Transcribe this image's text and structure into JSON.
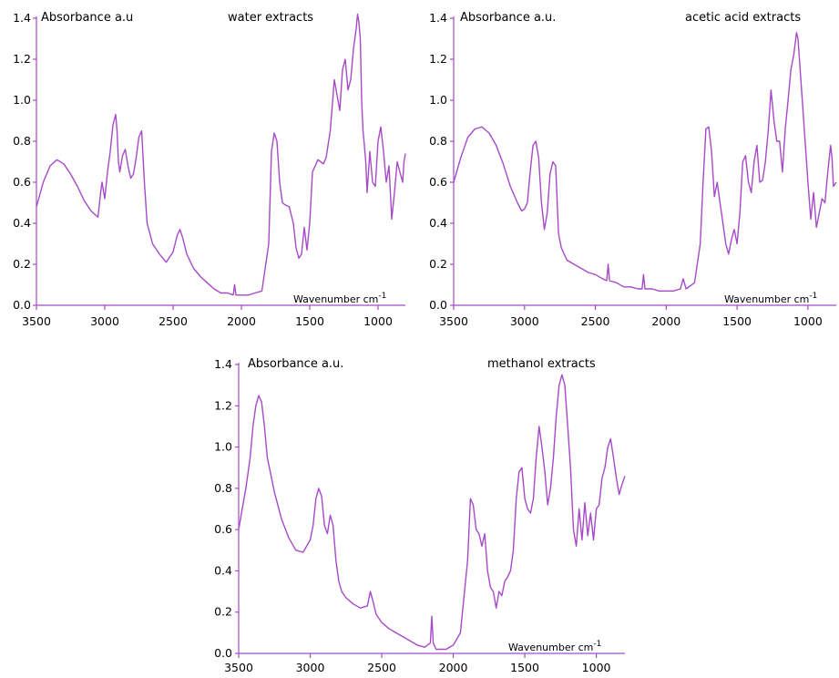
{
  "chart_data": [
    {
      "type": "line",
      "title": "water extracts",
      "ylabel": "Absorbance a.u",
      "xlabel": "Wavenumber cm",
      "xlabel_superscript": "-1",
      "xlim": [
        3500,
        800
      ],
      "ylim": [
        0.0,
        1.4
      ],
      "xticks": [
        "3500",
        "3000",
        "2500",
        "2000",
        "1500",
        "1000"
      ],
      "yticks": [
        "0.0",
        "0.2",
        "0.4",
        "0.6",
        "0.8",
        "1.0",
        "1.2",
        "1.4"
      ],
      "series": [
        {
          "color": "#a64ac9",
          "x": [
            3500,
            3450,
            3400,
            3350,
            3300,
            3250,
            3200,
            3150,
            3100,
            3050,
            3030,
            3020,
            3000,
            2980,
            2960,
            2940,
            2920,
            2910,
            2900,
            2890,
            2870,
            2850,
            2830,
            2810,
            2790,
            2770,
            2750,
            2730,
            2710,
            2690,
            2650,
            2600,
            2550,
            2500,
            2470,
            2450,
            2430,
            2400,
            2350,
            2300,
            2250,
            2200,
            2150,
            2100,
            2060,
            2050,
            2040,
            2000,
            1950,
            1900,
            1850,
            1800,
            1780,
            1760,
            1740,
            1720,
            1700,
            1680,
            1650,
            1620,
            1600,
            1580,
            1560,
            1540,
            1520,
            1500,
            1480,
            1460,
            1440,
            1420,
            1400,
            1380,
            1350,
            1320,
            1280,
            1260,
            1240,
            1220,
            1200,
            1180,
            1160,
            1150,
            1140,
            1130,
            1120,
            1110,
            1100,
            1090,
            1080,
            1060,
            1040,
            1020,
            1000,
            980,
            960,
            940,
            920,
            900,
            880,
            860,
            840,
            820,
            810,
            800
          ],
          "y": [
            0.48,
            0.6,
            0.68,
            0.71,
            0.69,
            0.64,
            0.58,
            0.51,
            0.46,
            0.43,
            0.55,
            0.6,
            0.52,
            0.65,
            0.75,
            0.88,
            0.93,
            0.85,
            0.7,
            0.65,
            0.73,
            0.76,
            0.68,
            0.62,
            0.64,
            0.72,
            0.82,
            0.85,
            0.6,
            0.4,
            0.3,
            0.25,
            0.21,
            0.26,
            0.34,
            0.37,
            0.33,
            0.25,
            0.18,
            0.14,
            0.11,
            0.08,
            0.06,
            0.06,
            0.05,
            0.1,
            0.05,
            0.05,
            0.05,
            0.06,
            0.07,
            0.3,
            0.75,
            0.84,
            0.8,
            0.6,
            0.5,
            0.49,
            0.48,
            0.4,
            0.28,
            0.23,
            0.25,
            0.38,
            0.27,
            0.4,
            0.65,
            0.68,
            0.71,
            0.7,
            0.69,
            0.72,
            0.85,
            1.1,
            0.95,
            1.15,
            1.2,
            1.05,
            1.1,
            1.25,
            1.35,
            1.42,
            1.38,
            1.3,
            1.0,
            0.85,
            0.78,
            0.7,
            0.55,
            0.75,
            0.6,
            0.58,
            0.8,
            0.87,
            0.75,
            0.6,
            0.68,
            0.42,
            0.55,
            0.7,
            0.65,
            0.6,
            0.7,
            0.74
          ]
        }
      ]
    },
    {
      "type": "line",
      "title": "acetic acid extracts",
      "ylabel": "Absorbance a.u.",
      "xlabel": "Wavenumber cm",
      "xlabel_superscript": "-1",
      "xlim": [
        3500,
        800
      ],
      "ylim": [
        0.0,
        1.4
      ],
      "xticks": [
        "3500",
        "3000",
        "2500",
        "2000",
        "1500",
        "1000"
      ],
      "yticks": [
        "0.0",
        "0.2",
        "0.4",
        "0.6",
        "0.8",
        "1.0",
        "1.2",
        "1.4"
      ],
      "series": [
        {
          "color": "#a64ac9",
          "x": [
            3500,
            3450,
            3400,
            3350,
            3300,
            3250,
            3200,
            3150,
            3100,
            3050,
            3020,
            3000,
            2980,
            2960,
            2940,
            2920,
            2900,
            2880,
            2860,
            2840,
            2820,
            2800,
            2780,
            2760,
            2740,
            2720,
            2700,
            2650,
            2600,
            2550,
            2500,
            2450,
            2420,
            2410,
            2400,
            2350,
            2300,
            2250,
            2200,
            2170,
            2160,
            2150,
            2100,
            2050,
            2000,
            1950,
            1900,
            1880,
            1860,
            1800,
            1760,
            1740,
            1720,
            1700,
            1680,
            1660,
            1640,
            1620,
            1600,
            1580,
            1560,
            1540,
            1520,
            1500,
            1480,
            1460,
            1440,
            1420,
            1400,
            1380,
            1360,
            1340,
            1320,
            1300,
            1280,
            1260,
            1240,
            1220,
            1200,
            1180,
            1160,
            1140,
            1120,
            1100,
            1080,
            1070,
            1060,
            1050,
            1040,
            1020,
            1000,
            980,
            960,
            940,
            920,
            900,
            880,
            860,
            840,
            830,
            820,
            800
          ],
          "y": [
            0.6,
            0.72,
            0.82,
            0.86,
            0.87,
            0.84,
            0.78,
            0.69,
            0.58,
            0.5,
            0.46,
            0.47,
            0.5,
            0.65,
            0.78,
            0.8,
            0.72,
            0.5,
            0.37,
            0.45,
            0.64,
            0.7,
            0.68,
            0.35,
            0.28,
            0.25,
            0.22,
            0.2,
            0.18,
            0.16,
            0.15,
            0.13,
            0.12,
            0.2,
            0.12,
            0.11,
            0.09,
            0.09,
            0.08,
            0.08,
            0.15,
            0.08,
            0.08,
            0.07,
            0.07,
            0.07,
            0.08,
            0.13,
            0.08,
            0.11,
            0.3,
            0.6,
            0.86,
            0.87,
            0.75,
            0.53,
            0.6,
            0.5,
            0.4,
            0.3,
            0.25,
            0.32,
            0.37,
            0.3,
            0.45,
            0.7,
            0.73,
            0.6,
            0.55,
            0.7,
            0.78,
            0.6,
            0.61,
            0.7,
            0.85,
            1.05,
            0.9,
            0.8,
            0.8,
            0.65,
            0.86,
            1.0,
            1.15,
            1.22,
            1.33,
            1.3,
            1.2,
            1.1,
            1.0,
            0.8,
            0.6,
            0.42,
            0.55,
            0.38,
            0.45,
            0.52,
            0.5,
            0.65,
            0.78,
            0.72,
            0.58,
            0.6
          ]
        }
      ]
    },
    {
      "type": "line",
      "title": "methanol extracts",
      "ylabel": "Absorbance a.u.",
      "xlabel": "Wavenumber cm",
      "xlabel_superscript": "-1",
      "xlim": [
        3500,
        800
      ],
      "ylim": [
        0.0,
        1.4
      ],
      "xticks": [
        "3500",
        "3000",
        "2500",
        "2000",
        "1500",
        "1000"
      ],
      "yticks": [
        "0.0",
        "0.2",
        "0.4",
        "0.6",
        "0.8",
        "1.0",
        "1.2",
        "1.4"
      ],
      "series": [
        {
          "color": "#a64ac9",
          "x": [
            3500,
            3480,
            3450,
            3420,
            3400,
            3380,
            3360,
            3340,
            3320,
            3300,
            3250,
            3200,
            3150,
            3100,
            3050,
            3000,
            2980,
            2960,
            2940,
            2920,
            2900,
            2880,
            2860,
            2840,
            2820,
            2800,
            2780,
            2750,
            2700,
            2650,
            2600,
            2580,
            2560,
            2540,
            2500,
            2450,
            2400,
            2350,
            2300,
            2250,
            2200,
            2160,
            2150,
            2140,
            2120,
            2100,
            2050,
            2000,
            1950,
            1900,
            1880,
            1860,
            1840,
            1820,
            1800,
            1780,
            1760,
            1740,
            1720,
            1700,
            1680,
            1660,
            1640,
            1620,
            1600,
            1580,
            1560,
            1540,
            1520,
            1500,
            1480,
            1460,
            1440,
            1420,
            1400,
            1380,
            1360,
            1340,
            1320,
            1300,
            1280,
            1260,
            1240,
            1220,
            1200,
            1180,
            1160,
            1140,
            1120,
            1100,
            1080,
            1060,
            1040,
            1020,
            1000,
            980,
            960,
            940,
            920,
            900,
            880,
            860,
            840,
            820,
            800
          ],
          "y": [
            0.6,
            0.68,
            0.8,
            0.95,
            1.1,
            1.2,
            1.25,
            1.22,
            1.1,
            0.95,
            0.78,
            0.65,
            0.56,
            0.5,
            0.49,
            0.55,
            0.62,
            0.75,
            0.8,
            0.76,
            0.62,
            0.58,
            0.67,
            0.62,
            0.45,
            0.35,
            0.3,
            0.27,
            0.24,
            0.22,
            0.23,
            0.3,
            0.25,
            0.19,
            0.15,
            0.12,
            0.1,
            0.08,
            0.06,
            0.04,
            0.03,
            0.05,
            0.18,
            0.05,
            0.02,
            0.02,
            0.02,
            0.04,
            0.1,
            0.45,
            0.75,
            0.72,
            0.6,
            0.58,
            0.52,
            0.58,
            0.4,
            0.32,
            0.3,
            0.22,
            0.3,
            0.28,
            0.35,
            0.37,
            0.4,
            0.5,
            0.75,
            0.88,
            0.9,
            0.75,
            0.7,
            0.68,
            0.75,
            0.95,
            1.1,
            1.0,
            0.88,
            0.72,
            0.8,
            0.95,
            1.15,
            1.3,
            1.35,
            1.3,
            1.1,
            0.9,
            0.6,
            0.52,
            0.7,
            0.55,
            0.73,
            0.57,
            0.68,
            0.55,
            0.7,
            0.72,
            0.85,
            0.9,
            1.0,
            1.04,
            0.95,
            0.85,
            0.77,
            0.82,
            0.86
          ]
        }
      ]
    }
  ]
}
